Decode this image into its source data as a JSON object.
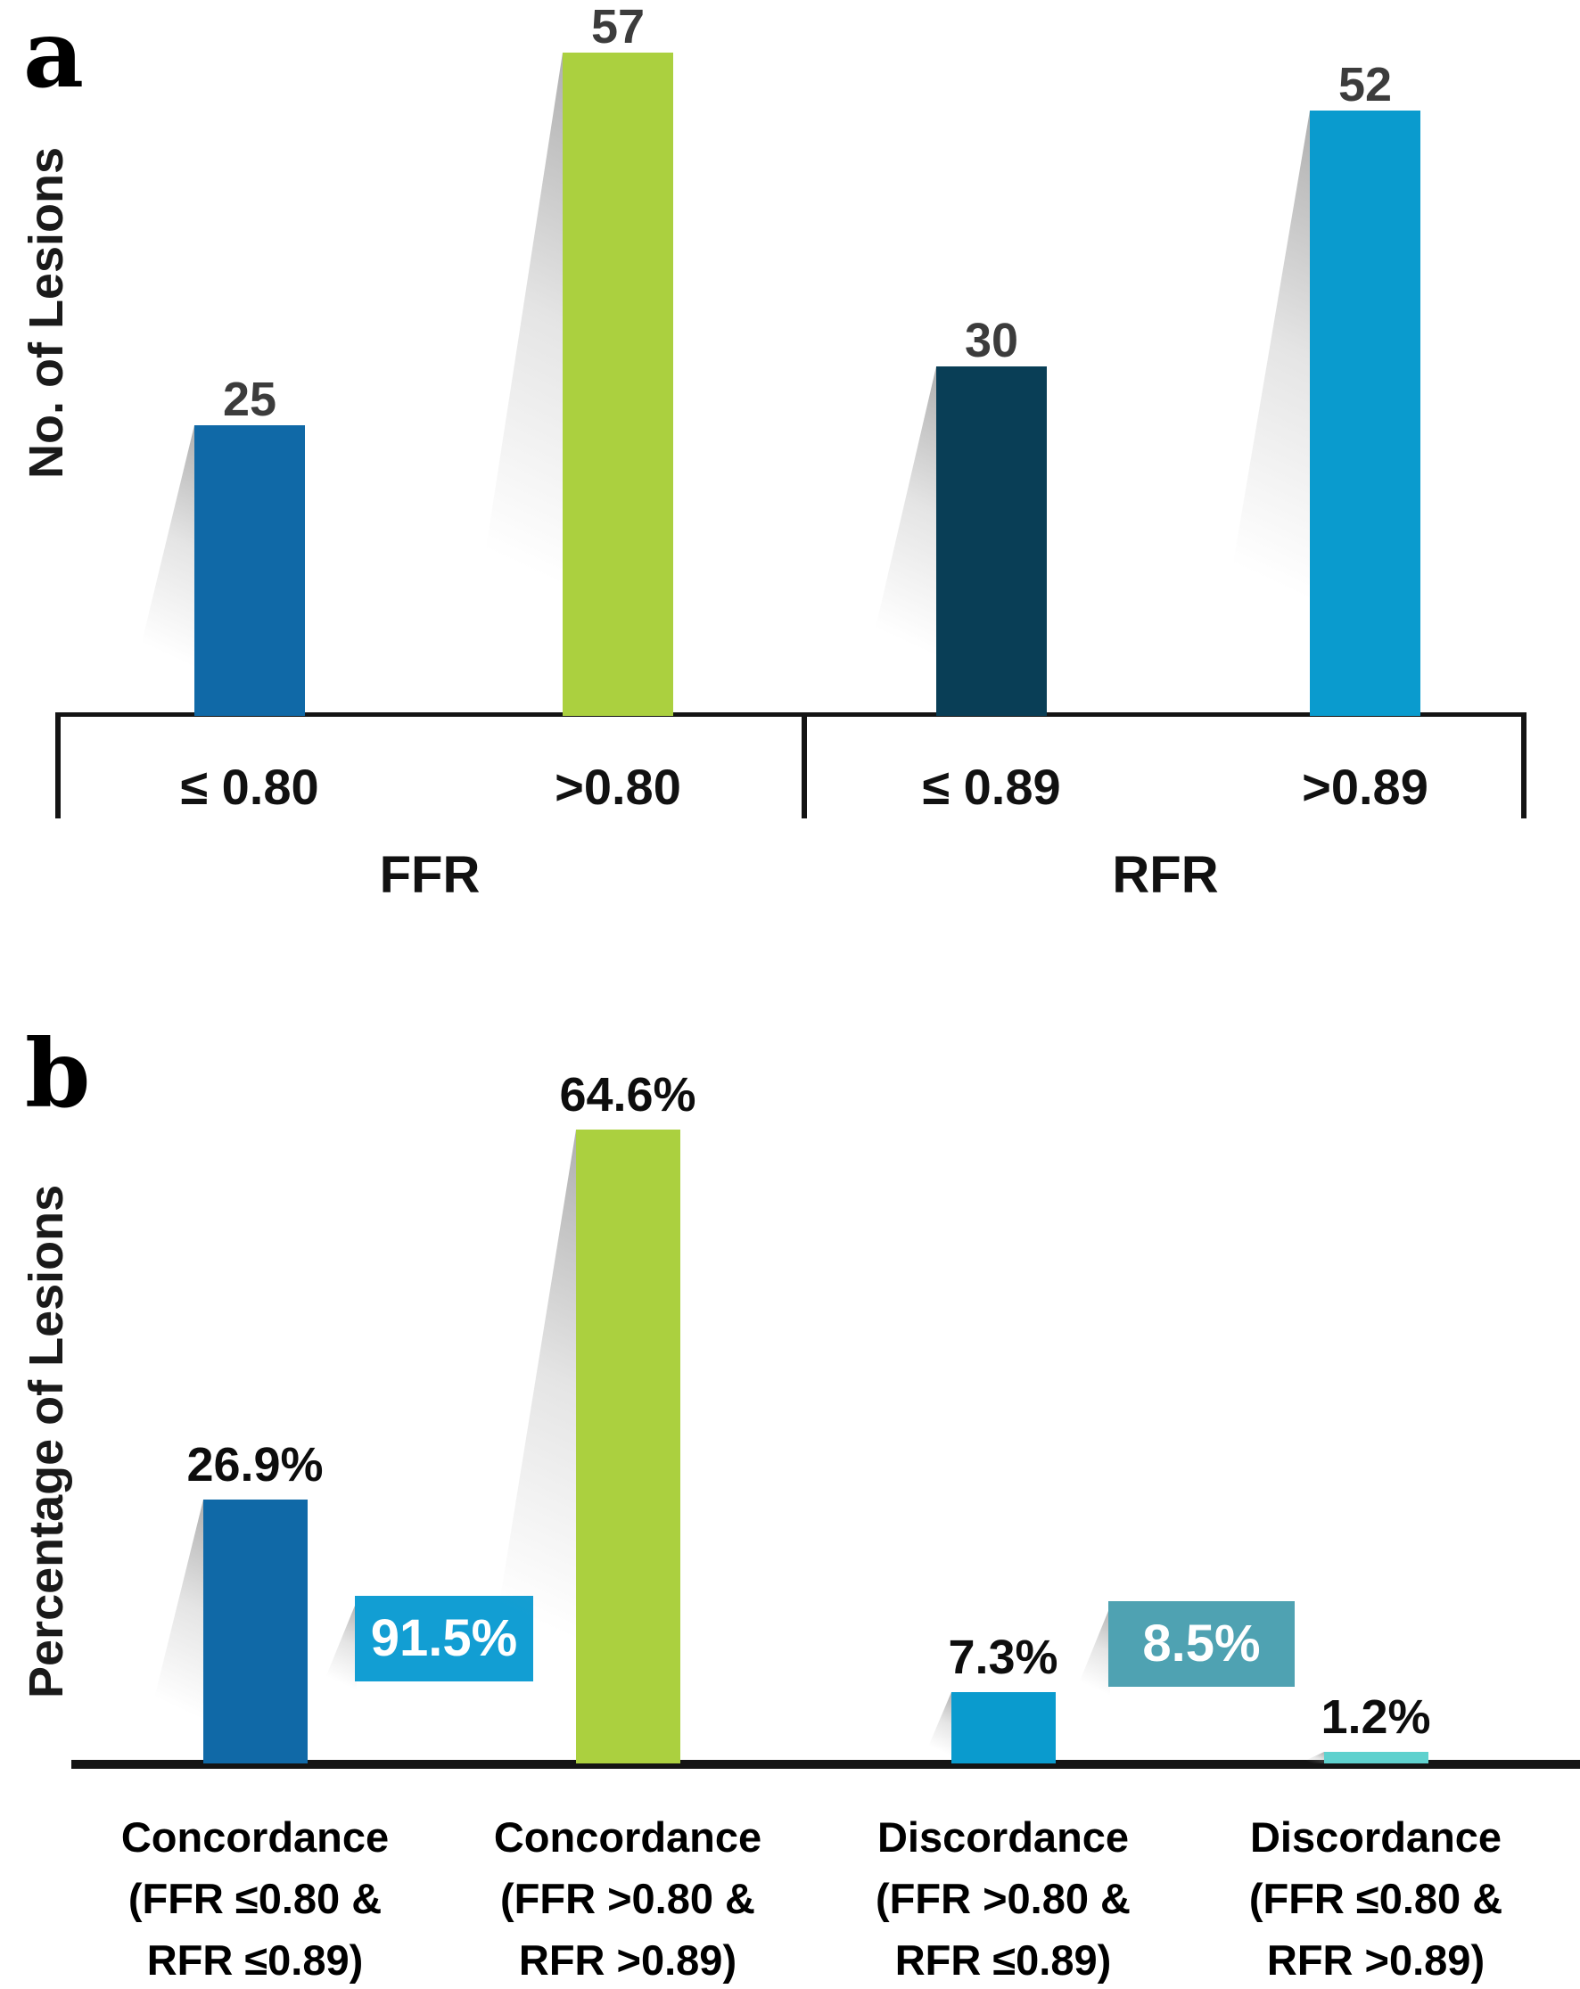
{
  "panel_a": {
    "panel_letter": "a",
    "y_axis_label": "No. of Lesions",
    "tick_labels": [
      "≤ 0.80",
      ">0.80",
      "≤ 0.89",
      ">0.89"
    ],
    "group_labels": [
      "FFR",
      "RFR"
    ],
    "value_labels": [
      "25",
      "57",
      "30",
      "52"
    ]
  },
  "panel_b": {
    "panel_letter": "b",
    "y_axis_label": "Percentage of Lesions",
    "value_labels": [
      "26.9%",
      "64.6%",
      "7.3%",
      "1.2%"
    ],
    "annotation_labels": [
      "91.5%",
      "8.5%"
    ],
    "category_labels": [
      [
        "Concordance",
        "(FFR ≤0.80 &",
        "RFR ≤0.89)"
      ],
      [
        "Concordance",
        "(FFR >0.80 &",
        "RFR >0.89)"
      ],
      [
        "Discordance",
        "(FFR >0.80 &",
        "RFR ≤0.89)"
      ],
      [
        "Discordance",
        "(FFR ≤0.80 &",
        "RFR >0.89)"
      ]
    ]
  },
  "chart_data": [
    {
      "type": "bar",
      "title": "",
      "xlabel": "",
      "ylabel": "No. of Lesions",
      "categories": [
        "FFR ≤ 0.80",
        "FFR >0.80",
        "RFR ≤ 0.89",
        "RFR >0.89"
      ],
      "values": [
        25,
        57,
        30,
        52
      ],
      "bar_colors": [
        "#1069a7",
        "#abd03f",
        "#093e56",
        "#0a9bce"
      ],
      "group_labels": [
        "FFR",
        "RFR"
      ],
      "legend": "none",
      "grid": false
    },
    {
      "type": "bar",
      "title": "",
      "xlabel": "",
      "ylabel": "Percentage of Lesions",
      "categories": [
        "Concordance (FFR ≤0.80 & RFR ≤0.89)",
        "Concordance (FFR >0.80 & RFR >0.89)",
        "Discordance (FFR >0.80 & RFR ≤0.89)",
        "Discordance (FFR ≤0.80 & RFR >0.89)"
      ],
      "values": [
        26.9,
        64.6,
        7.3,
        1.2
      ],
      "bar_colors": [
        "#1069a7",
        "#abd03f",
        "#0a9bce",
        "#5fd1ce"
      ],
      "annotations": [
        {
          "text": "91.5%",
          "color": "#129ed3"
        },
        {
          "text": "8.5%",
          "color": "#4fa2b2"
        }
      ],
      "legend": "none",
      "grid": false
    }
  ]
}
